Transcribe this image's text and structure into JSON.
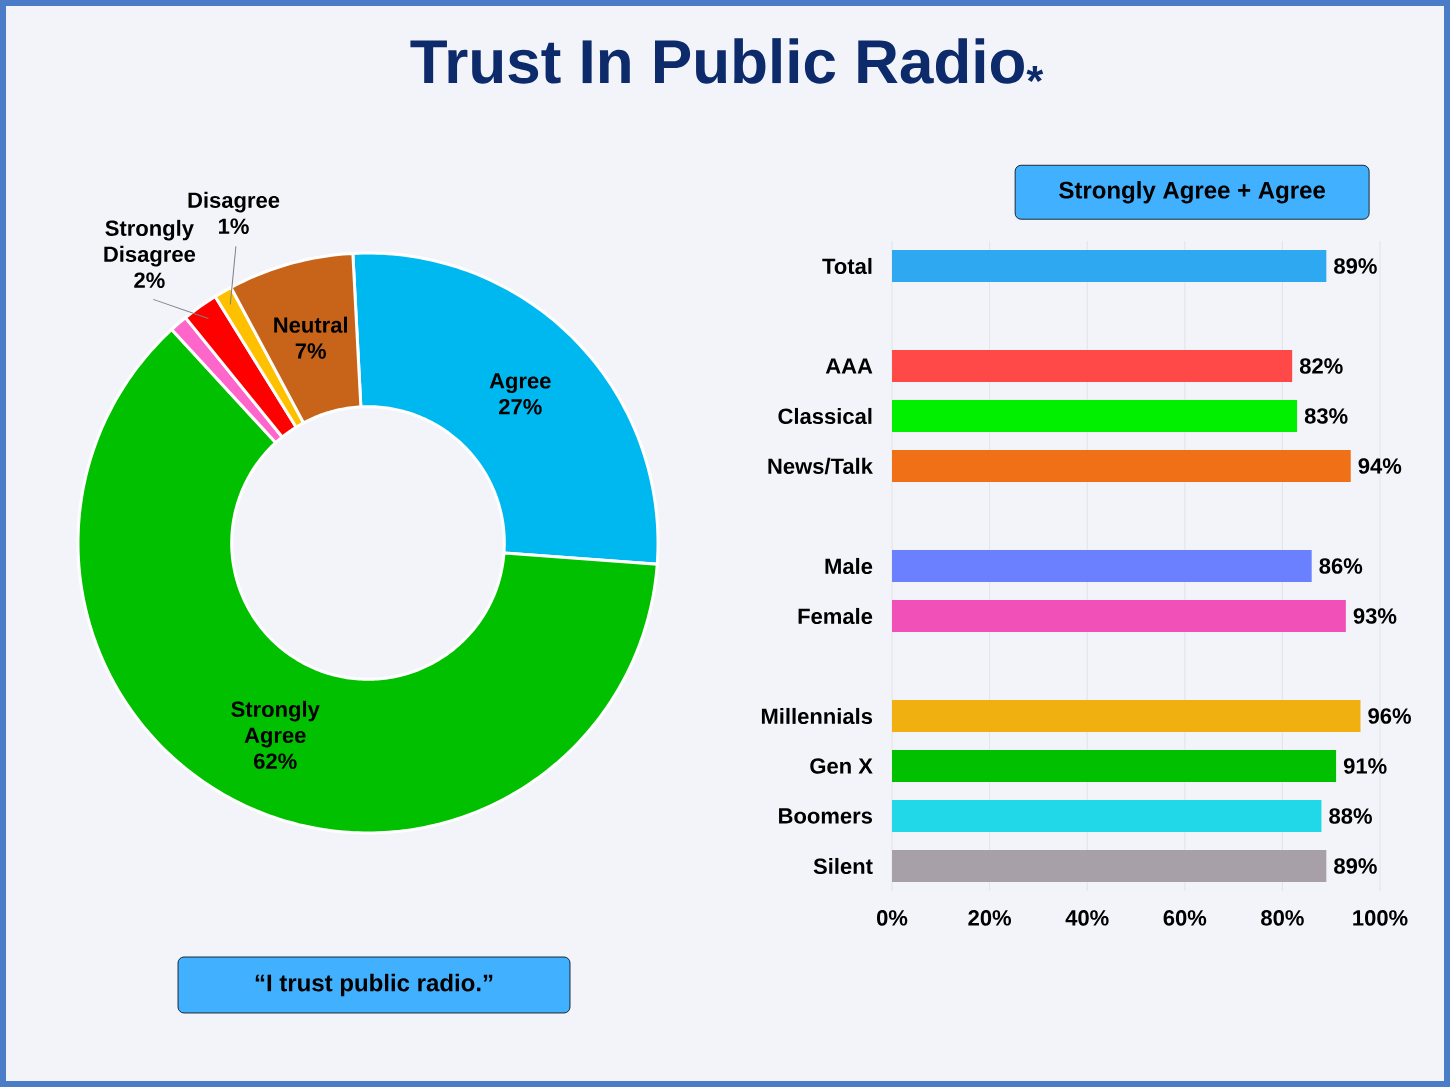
{
  "chart_data": [
    {
      "type": "donut",
      "title": "Trust In Public Radio$_{*}$",
      "categories": [
        "Agree",
        "Strongly Agree",
        null,
        "Strongly Disagree",
        "Disagree",
        "Neutral"
      ],
      "values": [
        27,
        62,
        1,
        2,
        1,
        7
      ],
      "value_labels": [
        "27%",
        "62%",
        null,
        "2%",
        "1%",
        "7%"
      ],
      "colors": [
        "#00b8f0",
        "#00c000",
        "#ff66cc",
        "#ff0000",
        "#ffc000",
        "#c8641a"
      ],
      "annotations": [
        "“I trust public radio.”"
      ]
    },
    {
      "type": "bar",
      "orientation": "horizontal",
      "title": "Strongly Agree + Agree",
      "categories": [
        "Total",
        null,
        "AAA",
        "Classical",
        "News/Talk",
        null,
        "Male",
        "Female",
        null,
        "Millennials",
        "Gen X",
        "Boomers",
        "Silent"
      ],
      "values": [
        89,
        null,
        82,
        83,
        94,
        null,
        86,
        93,
        null,
        96,
        91,
        88,
        89
      ],
      "value_labels": [
        "89%",
        null,
        "82%",
        "83%",
        "94%",
        null,
        "86%",
        "93%",
        null,
        "96%",
        "91%",
        "88%",
        "89%"
      ],
      "colors": [
        "#2ea8f0",
        null,
        "#ff4848",
        "#00f000",
        "#f07018",
        null,
        "#6b80ff",
        "#f050b8",
        null,
        "#f0b010",
        "#00c000",
        "#20d8e8",
        "#a8a0a8"
      ],
      "xlim": [
        0,
        100
      ],
      "xticks": [
        {
          "value": 0,
          "label": "0%"
        },
        {
          "value": 20,
          "label": "20%"
        },
        {
          "value": 40,
          "label": "40%"
        },
        {
          "value": 60,
          "label": "60%"
        },
        {
          "value": 80,
          "label": "80%"
        },
        {
          "value": 100,
          "label": "100%"
        }
      ],
      "grid": "x"
    }
  ]
}
